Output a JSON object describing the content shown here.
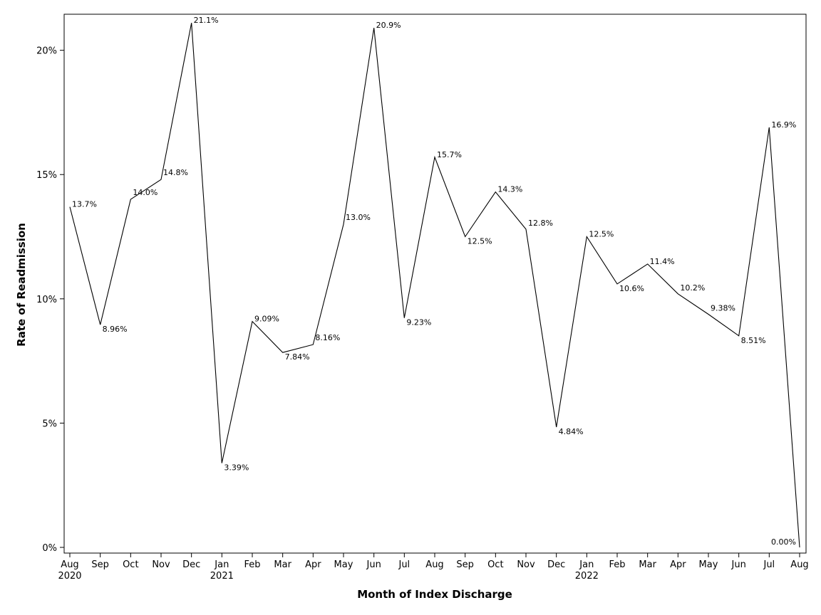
{
  "chart_data": {
    "type": "line",
    "title": "",
    "xlabel": "Month of Index Discharge",
    "ylabel": "Rate of Readmission",
    "ylim": [
      0,
      0.2145
    ],
    "yticks": [
      {
        "value": 0,
        "label": "0%"
      },
      {
        "value": 0.05,
        "label": "5%"
      },
      {
        "value": 0.1,
        "label": "10%"
      },
      {
        "value": 0.15,
        "label": "15%"
      },
      {
        "value": 0.2,
        "label": "20%"
      }
    ],
    "grid": false,
    "legend": "none",
    "line_color": "#000000",
    "categories": [
      "Aug",
      "Sep",
      "Oct",
      "Nov",
      "Dec",
      "Jan",
      "Feb",
      "Mar",
      "Apr",
      "May",
      "Jun",
      "Jul",
      "Aug",
      "Sep",
      "Oct",
      "Nov",
      "Dec",
      "Jan",
      "Feb",
      "Mar",
      "Apr",
      "May",
      "Jun",
      "Jul",
      "Aug"
    ],
    "x_dates": [
      "2020-08",
      "2020-09",
      "2020-10",
      "2020-11",
      "2020-12",
      "2021-01",
      "2021-02",
      "2021-03",
      "2021-04",
      "2021-05",
      "2021-06",
      "2021-07",
      "2021-08",
      "2021-09",
      "2021-10",
      "2021-11",
      "2021-12",
      "2022-01",
      "2022-02",
      "2022-03",
      "2022-04",
      "2022-05",
      "2022-06",
      "2022-07",
      "2022-08"
    ],
    "year_labels": [
      {
        "month": "2020-08",
        "label": "2020"
      },
      {
        "month": "2021-01",
        "label": "2021"
      },
      {
        "month": "2022-01",
        "label": "2022"
      }
    ],
    "values": [
      0.137,
      0.0896,
      0.14,
      0.148,
      0.211,
      0.0339,
      0.0909,
      0.0784,
      0.0816,
      0.13,
      0.209,
      0.0923,
      0.157,
      0.125,
      0.143,
      0.128,
      0.0484,
      0.125,
      0.106,
      0.114,
      0.102,
      0.0938,
      0.0851,
      0.169,
      0.0
    ],
    "data_labels": [
      "13.7%",
      "8.96%",
      "14.0%",
      "14.8%",
      "21.1%",
      "3.39%",
      "9.09%",
      "7.84%",
      "8.16%",
      "13.0%",
      "20.9%",
      "9.23%",
      "15.7%",
      "12.5%",
      "14.3%",
      "12.8%",
      "4.84%",
      "12.5%",
      "10.6%",
      "11.4%",
      "10.2%",
      "9.38%",
      "8.51%",
      "16.9%",
      "0.00%"
    ]
  }
}
